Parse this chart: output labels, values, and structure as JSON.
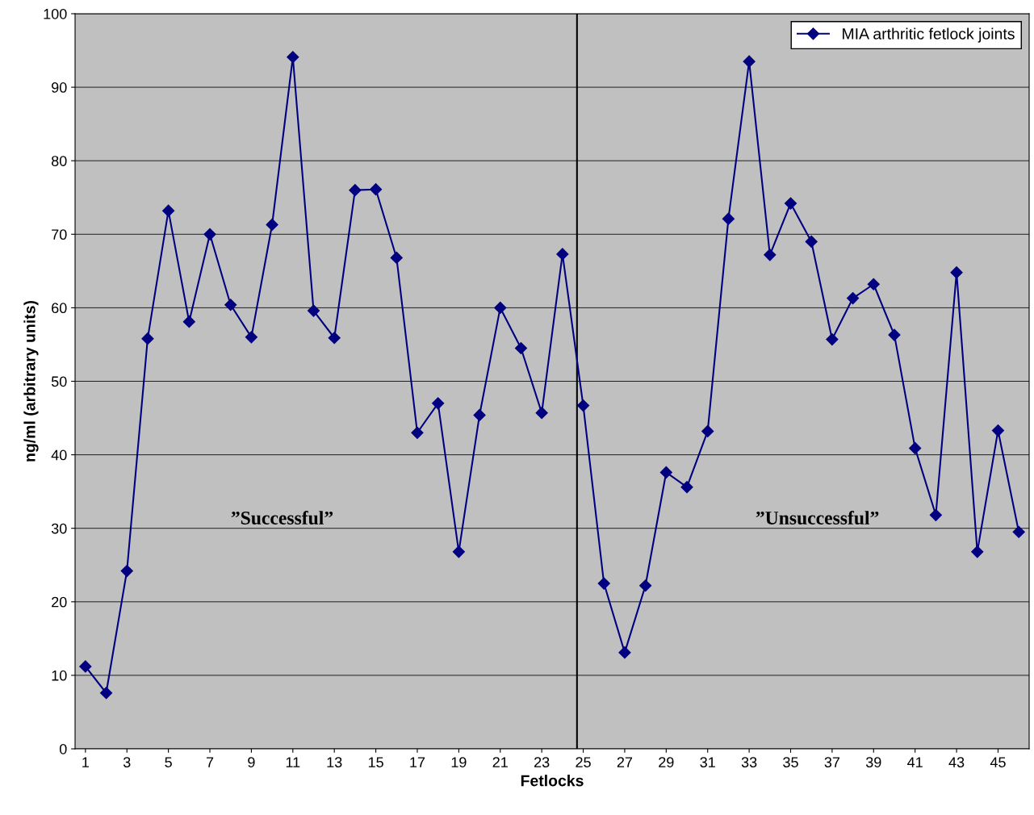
{
  "chart_data": {
    "type": "line",
    "xlabel": "Fetlocks",
    "ylabel": "ng/ml (arbitrary units)",
    "x": [
      1,
      2,
      3,
      4,
      5,
      6,
      7,
      8,
      9,
      10,
      11,
      12,
      13,
      14,
      15,
      16,
      17,
      18,
      19,
      20,
      21,
      22,
      23,
      24,
      25,
      26,
      27,
      28,
      29,
      30,
      31,
      32,
      33,
      34,
      35,
      36,
      37,
      38,
      39,
      40,
      41,
      42,
      43,
      44,
      45,
      46
    ],
    "series": [
      {
        "name": "MIA arthritic fetlock joints",
        "color": "#000080",
        "values": [
          11.2,
          7.6,
          24.2,
          55.8,
          73.2,
          58.1,
          70,
          60.4,
          56,
          71.3,
          94.1,
          59.6,
          55.9,
          76,
          76.1,
          66.8,
          43,
          47,
          26.8,
          45.4,
          60,
          54.5,
          45.7,
          67.3,
          46.7,
          22.5,
          13.1,
          22.2,
          37.6,
          35.6,
          43.2,
          72.1,
          93.5,
          67.2,
          74.2,
          69,
          55.7,
          61.3,
          63.2,
          56.3,
          40.9,
          31.8,
          64.8,
          26.8,
          43.3,
          29.5
        ]
      }
    ],
    "xlim": [
      0.5,
      46.5
    ],
    "xticks": [
      1,
      3,
      5,
      7,
      9,
      11,
      13,
      15,
      17,
      19,
      21,
      23,
      25,
      27,
      29,
      31,
      33,
      35,
      37,
      39,
      41,
      43,
      45
    ],
    "ylim": [
      0,
      100
    ],
    "yticks": [
      0,
      10,
      20,
      30,
      40,
      50,
      60,
      70,
      80,
      90,
      100
    ],
    "ref_lines": [
      {
        "axis": "x",
        "value": 24.7,
        "color": "#000000",
        "line_style": "solid"
      }
    ],
    "annotations": [
      "”Successful”",
      "”Unsuccessful”"
    ],
    "grid": "y",
    "legend": "top right",
    "marker": "diamond",
    "line_style": "solid"
  }
}
